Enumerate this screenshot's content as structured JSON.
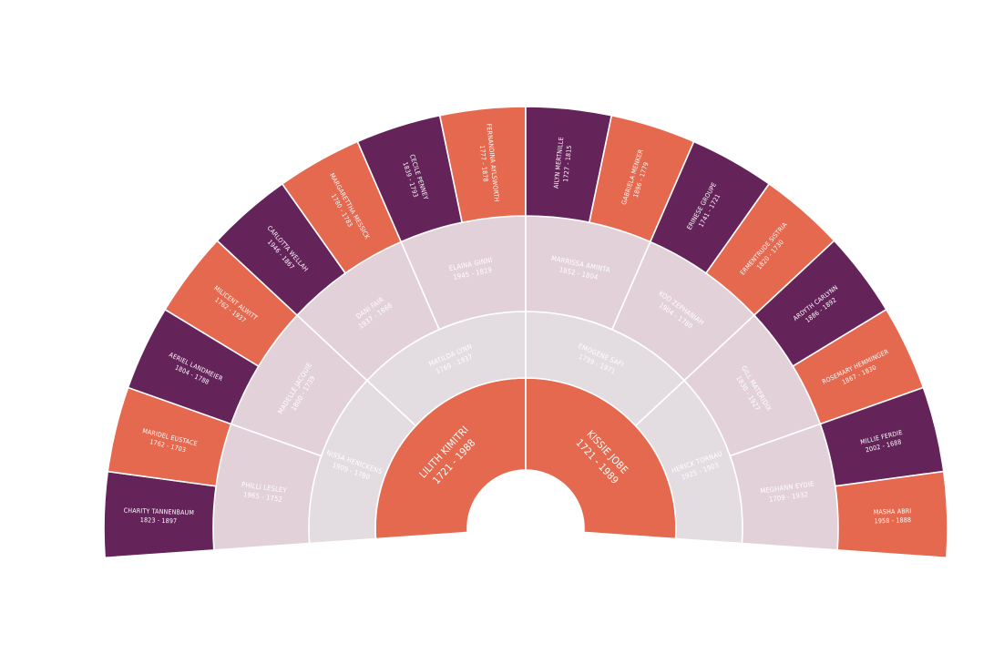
{
  "colors": {
    "orange": "#E5694F",
    "purple": "#64245A",
    "pink": "#E3D1D9",
    "grey": "#E3DCE1",
    "light_text": "#ffffff",
    "dark_text": "#ffffff"
  },
  "chart_data": {
    "type": "fan-chart",
    "generations": [
      {
        "level": 1,
        "people": [
          {
            "name": "LILITH KIMITRI",
            "dates": "1721 - 1988"
          },
          {
            "name": "KISSIE JOBE",
            "dates": "1721 - 1989"
          }
        ]
      },
      {
        "level": 2,
        "people": [
          {
            "name": "NISSA HENICKENS",
            "dates": "1909 - 1780"
          },
          {
            "name": "MATILDA LYNN",
            "dates": "1769 - 1937"
          },
          {
            "name": "EMOGENE SAFI",
            "dates": "1799 - 1971"
          },
          {
            "name": "HERICK TORNAU",
            "dates": "1925 - 1903"
          }
        ]
      },
      {
        "level": 3,
        "people": [
          {
            "name": "PHILLI LESLEY",
            "dates": "1965 - 1752"
          },
          {
            "name": "MADELLE JACQUIE",
            "dates": "1800 - 1739"
          },
          {
            "name": "DANI FAIR",
            "dates": "1937 - 1866"
          },
          {
            "name": "ELAINA GINNI",
            "dates": "1945 - 1819"
          },
          {
            "name": "MARRISSA AMINTA",
            "dates": "1852 - 1804"
          },
          {
            "name": "KOO ZEPHANIAH",
            "dates": "1904 - 1780"
          },
          {
            "name": "GILL MATERIDIX",
            "dates": "1830 - 1927"
          },
          {
            "name": "MEGHANN EYDIE",
            "dates": "1709 - 1932"
          }
        ]
      },
      {
        "level": 4,
        "people": [
          {
            "name": "CHARITY TANNENBAUM",
            "dates": "1823 - 1897"
          },
          {
            "name": "MARIDEL EUSTACE",
            "dates": "1762 - 1703"
          },
          {
            "name": "AERIEL LANDMEIER",
            "dates": "1804 - 1788"
          },
          {
            "name": "MILICENT ALWITT",
            "dates": "1762 - 1937"
          },
          {
            "name": "CARLOTTA WELLAH",
            "dates": "1946 - 1867"
          },
          {
            "name": "MARGARETTHA MESSICK",
            "dates": "1780 - 1783"
          },
          {
            "name": "CECILE PENNEY",
            "dates": "1839 - 1793"
          },
          {
            "name": "FERNANDINA AYLSWORTH",
            "dates": "1777 - 1878"
          },
          {
            "name": "AILYN MERTNILLE",
            "dates": "1727 - 1815"
          },
          {
            "name": "GABRIELA MENKER",
            "dates": "1896 - 1779"
          },
          {
            "name": "ERINESE GROUPE",
            "dates": "1741 - 1721"
          },
          {
            "name": "ERMENTRUDE SISTRIA",
            "dates": "1820 - 1730"
          },
          {
            "name": "ARDYTH CARLYNN",
            "dates": "1886 - 1892"
          },
          {
            "name": "ROSEMARY HEMMINGER",
            "dates": "1867 - 1830"
          },
          {
            "name": "MILLIE FERDIE",
            "dates": "2002 - 1688"
          },
          {
            "name": "MASHA ABRI",
            "dates": "1958 - 1888"
          }
        ]
      }
    ]
  }
}
